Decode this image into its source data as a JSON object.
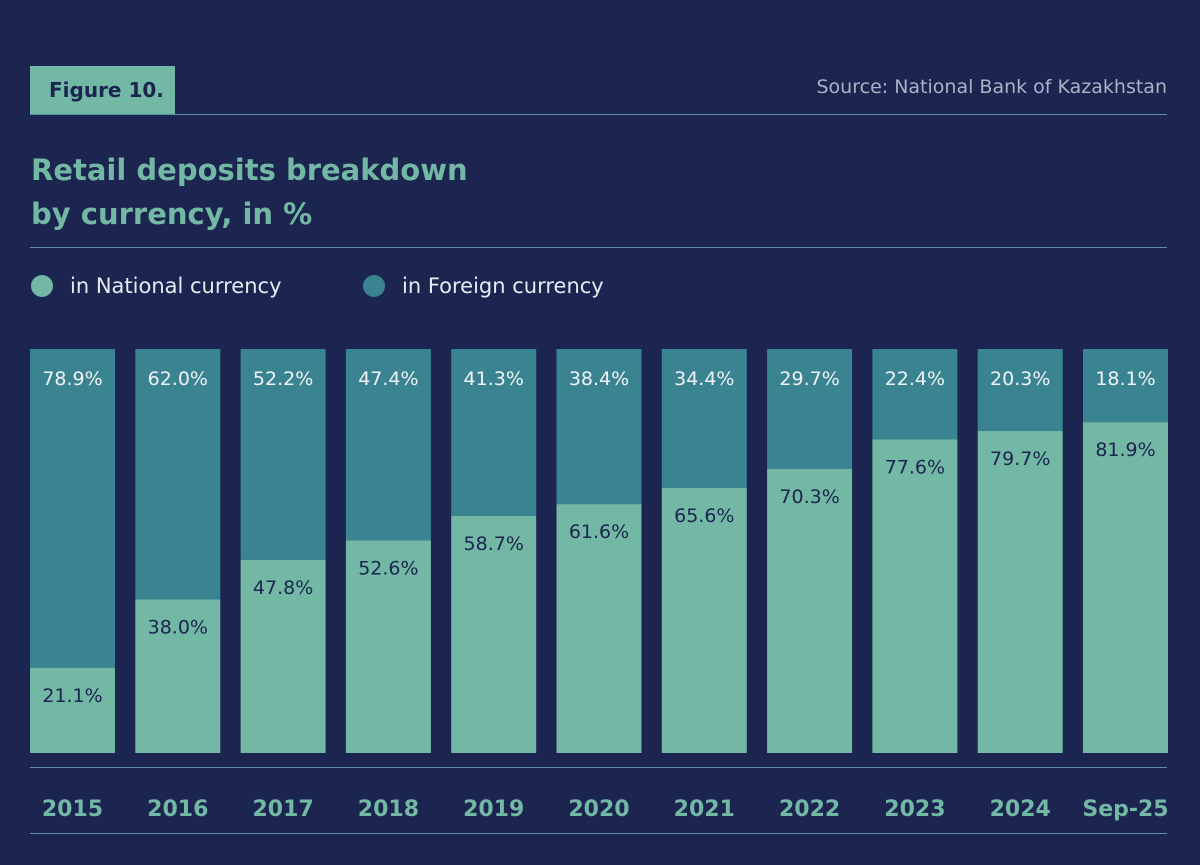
{
  "figure_label": "Figure 10.",
  "source": "Source: National Bank of Kazakhstan",
  "chart_data": {
    "type": "bar",
    "stacked": true,
    "title": "Retail deposits breakdown by currency, in %",
    "title_lines": [
      "Retail deposits breakdown",
      "by currency, in %"
    ],
    "categories": [
      "2015",
      "2016",
      "2017",
      "2018",
      "2019",
      "2020",
      "2021",
      "2022",
      "2023",
      "2024",
      "Sep-25"
    ],
    "series": [
      {
        "name": "in National currency",
        "color": "#72b8a4",
        "values": [
          21.1,
          38.0,
          47.8,
          52.6,
          58.7,
          61.6,
          65.6,
          70.3,
          77.6,
          79.7,
          81.9
        ]
      },
      {
        "name": "in Foreign currency",
        "color": "#3a8390",
        "values": [
          78.9,
          62.0,
          52.2,
          47.4,
          41.3,
          38.4,
          34.4,
          29.7,
          22.4,
          20.3,
          18.1
        ]
      }
    ],
    "ylim": [
      0,
      100
    ],
    "grid": false,
    "legend": "top-left",
    "value_suffix": "%"
  },
  "colors": {
    "background": "#1b2550",
    "accent": "#72b8a4"
  }
}
